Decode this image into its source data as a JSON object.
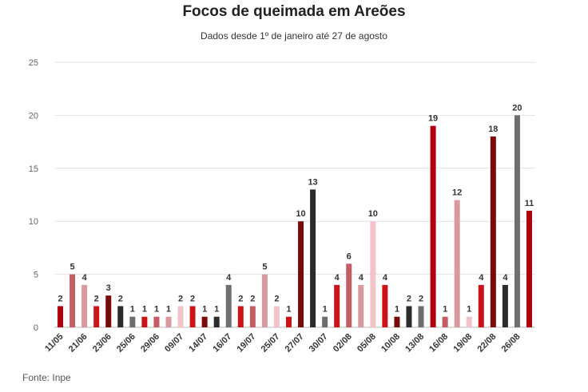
{
  "chart_data": {
    "type": "bar",
    "title": "Focos de queimada em Areões",
    "subtitle": "Dados desde 1º de janeiro até 27 de agosto",
    "source": "Fonte: Inpe",
    "xlabel": "",
    "ylabel": "",
    "ylim": [
      0,
      25
    ],
    "yticks": [
      0,
      5,
      10,
      15,
      20,
      25
    ],
    "grid": true,
    "categories": [
      "11/05",
      "",
      "21/06",
      "",
      "23/06",
      "",
      "25/06",
      "",
      "29/06",
      "",
      "09/07",
      "",
      "14/07",
      "",
      "16/07",
      "",
      "19/07",
      "",
      "25/07",
      "",
      "27/07",
      "",
      "30/07",
      "",
      "02/08",
      "",
      "05/08",
      "",
      "10/08",
      "",
      "13/08",
      "",
      "16/08",
      "",
      "19/08",
      "",
      "22/08",
      "",
      "26/08",
      ""
    ],
    "values": [
      2,
      5,
      4,
      2,
      3,
      2,
      1,
      1,
      1,
      1,
      2,
      2,
      1,
      1,
      4,
      2,
      2,
      5,
      2,
      1,
      10,
      13,
      1,
      4,
      6,
      4,
      10,
      4,
      1,
      2,
      2,
      19,
      1,
      12,
      1,
      4,
      18,
      4,
      20,
      11
    ],
    "colors": [
      "#b0000f",
      "#c45c66",
      "#d89a9f",
      "#cc1418",
      "#7a0a0a",
      "#2b2b2b",
      "#6e6e6e",
      "#cc1418",
      "#c45c66",
      "#d89a9f",
      "#f2c4c8",
      "#cc1418",
      "#7a0a0a",
      "#2b2b2b",
      "#6e6e6e",
      "#cc1418",
      "#c45c66",
      "#d89a9f",
      "#f2c4c8",
      "#cc1418",
      "#7a0a0a",
      "#2b2b2b",
      "#6e6e6e",
      "#cc1418",
      "#c45c66",
      "#d89a9f",
      "#f2c4c8",
      "#cc1418",
      "#7a0a0a",
      "#2b2b2b",
      "#6e6e6e",
      "#b0000f",
      "#c45c66",
      "#d89a9f",
      "#f2c4c8",
      "#cc1418",
      "#7a0a0a",
      "#2b2b2b",
      "#6e6e6e",
      "#b0000f"
    ]
  }
}
